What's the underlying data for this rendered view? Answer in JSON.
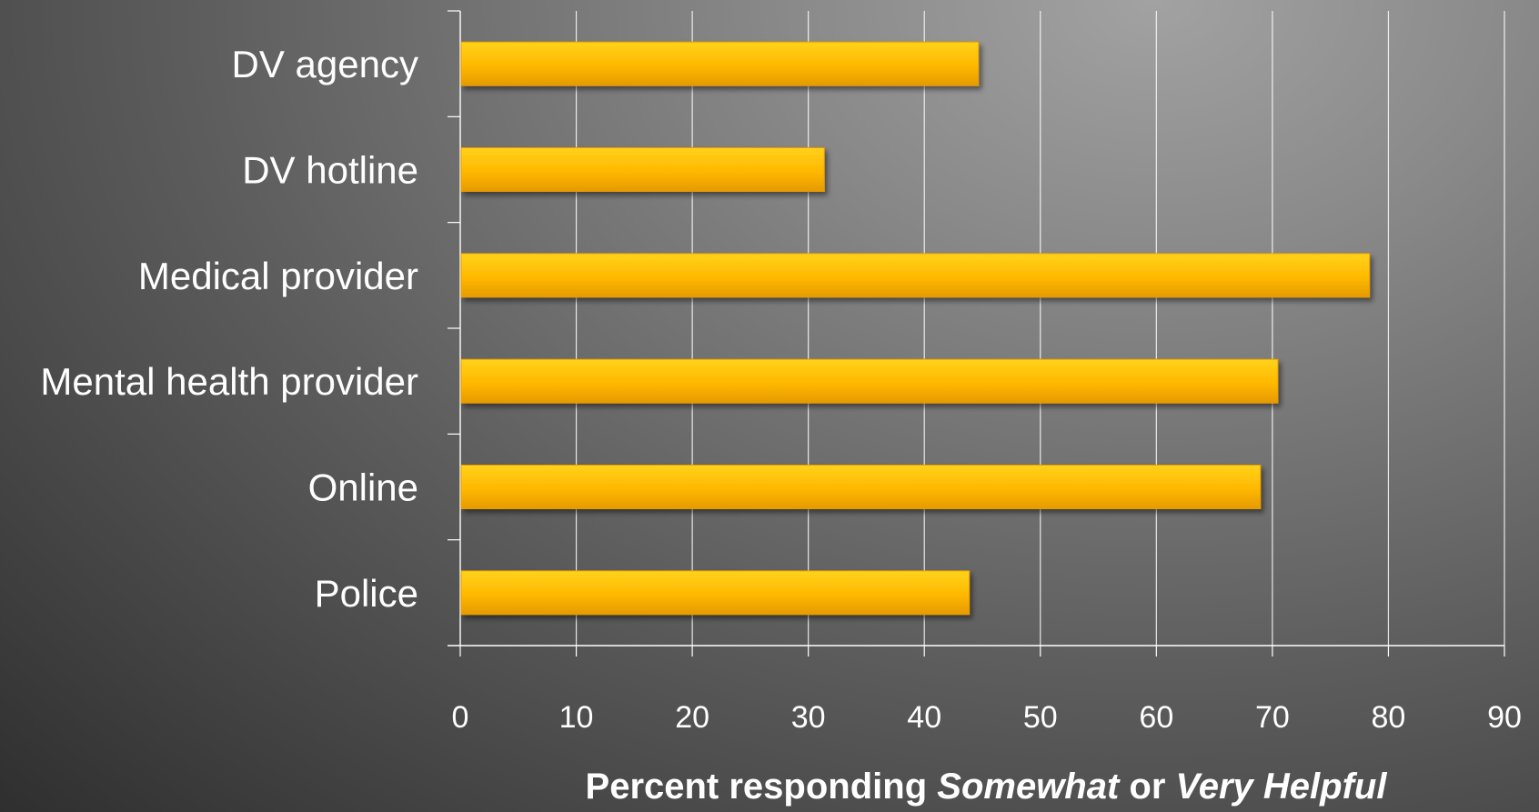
{
  "chart_data": {
    "type": "bar",
    "orientation": "horizontal",
    "categories": [
      "DV agency",
      "DV hotline",
      "Medical provider",
      "Mental health provider",
      "Online",
      "Police"
    ],
    "values": [
      44.6,
      31.3,
      78.3,
      70.4,
      68.9,
      43.8
    ],
    "xlim": [
      0,
      90
    ],
    "xticks": [
      "0",
      "10",
      "20",
      "30",
      "40",
      "50",
      "60",
      "70",
      "80",
      "90"
    ],
    "xlabel": {
      "part1": "Percent responding ",
      "part2": "Somewhat",
      "part3": "  or ",
      "part4": "Very Helpful"
    },
    "grid": true,
    "legend": "none",
    "colors": {
      "bar": "#ffc000",
      "bar_dark": "#e89c00",
      "grid": "#ffffff",
      "text": "#ffffff"
    }
  }
}
